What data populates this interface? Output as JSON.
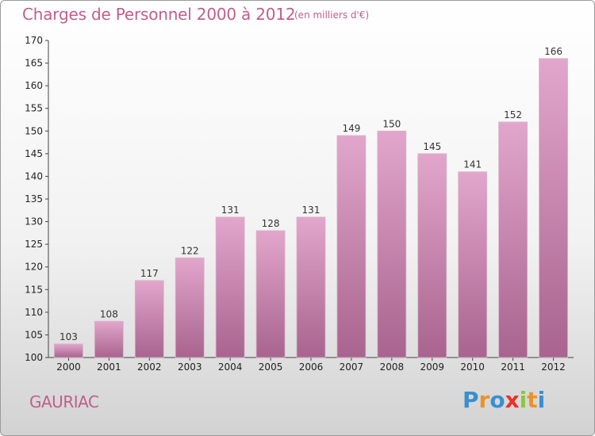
{
  "header": {
    "title": "Charges de Personnel 2000 à 2012",
    "subtitle": "(en milliers d'€)"
  },
  "footer": {
    "location": "GAURIAC",
    "brand": "Proxiti"
  },
  "colors": {
    "title": "#c05e8d",
    "bar_top": "#e2a6cc",
    "bar_bottom": "#a8648e",
    "brand_letters": [
      "#3a8ed0",
      "#e9932b",
      "#3a8ed0",
      "#e8312a",
      "#8cc63f",
      "#e9932b",
      "#3a8ed0"
    ]
  },
  "chart_data": {
    "type": "bar",
    "title": "Charges de Personnel 2000 à 2012",
    "subtitle": "(en milliers d'€)",
    "xlabel": "",
    "ylabel": "",
    "categories": [
      "2000",
      "2001",
      "2002",
      "2003",
      "2004",
      "2005",
      "2006",
      "2007",
      "2008",
      "2009",
      "2010",
      "2011",
      "2012"
    ],
    "values": [
      103,
      108,
      117,
      122,
      131,
      128,
      131,
      149,
      150,
      145,
      141,
      152,
      166
    ],
    "ylim": [
      100,
      170
    ],
    "yticks": [
      100,
      105,
      110,
      115,
      120,
      125,
      130,
      135,
      140,
      145,
      150,
      155,
      160,
      165,
      170
    ],
    "grid": false,
    "legend": "none"
  }
}
